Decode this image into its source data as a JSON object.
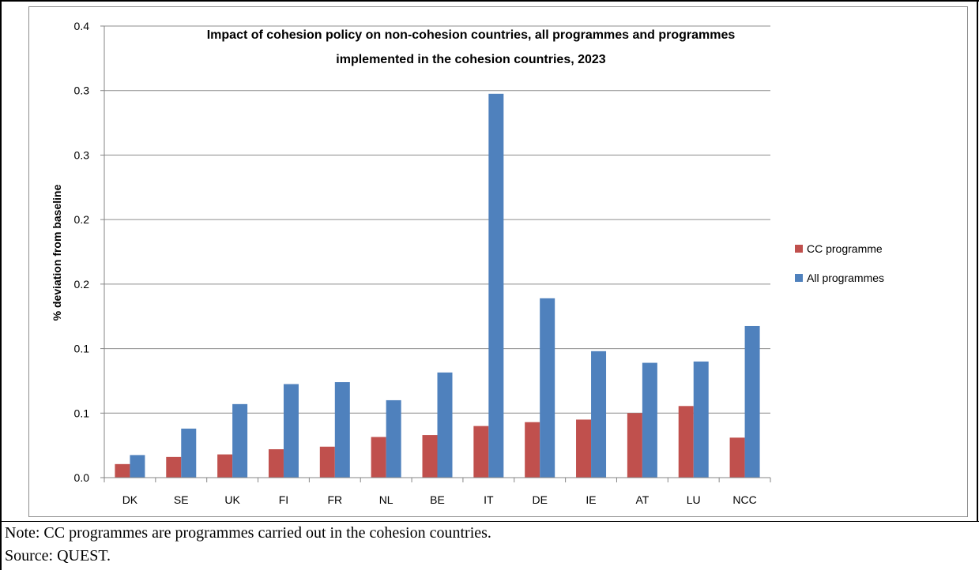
{
  "chart_data": {
    "type": "bar",
    "title_lines": [
      "Impact of cohesion policy on non-cohesion countries, all programmes and programmes",
      "implemented in the cohesion countries, 2023"
    ],
    "xlabel": "",
    "ylabel": "% deviation from baseline",
    "ylim": [
      0,
      0.35
    ],
    "ytick_values": [
      0,
      0.05,
      0.1,
      0.15,
      0.2,
      0.25,
      0.3,
      0.35
    ],
    "ytick_labels": [
      "0.0",
      "0.1",
      "0.1",
      "0.2",
      "0.2",
      "0.3",
      "0.3",
      "0.4"
    ],
    "grid": true,
    "legend_position": "right",
    "categories": [
      "DK",
      "SE",
      "UK",
      "FI",
      "FR",
      "NL",
      "BE",
      "IT",
      "DE",
      "IE",
      "AT",
      "LU",
      "NCC"
    ],
    "series": [
      {
        "name": "CC programme",
        "color": "#c0504d",
        "values": [
          0.0105,
          0.016,
          0.018,
          0.022,
          0.024,
          0.0315,
          0.033,
          0.04,
          0.043,
          0.045,
          0.05,
          0.0555,
          0.031
        ]
      },
      {
        "name": "All programmes",
        "color": "#4f81bd",
        "values": [
          0.0175,
          0.038,
          0.057,
          0.0725,
          0.074,
          0.06,
          0.0815,
          0.2975,
          0.139,
          0.098,
          0.089,
          0.09,
          0.1175
        ]
      }
    ]
  },
  "notes": {
    "note": "Note: CC programmes are programmes carried out in the cohesion countries.",
    "source": "Source: QUEST."
  }
}
